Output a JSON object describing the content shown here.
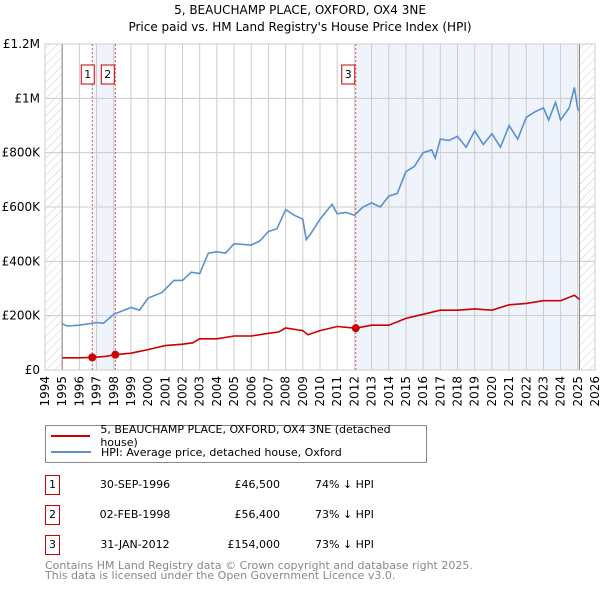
{
  "chart_data": {
    "type": "line",
    "title": "5, BEAUCHAMP PLACE, OXFORD, OX4 3NE",
    "subtitle": "Price paid vs. HM Land Registry's House Price Index (HPI)",
    "xlim": [
      1994,
      2026
    ],
    "ylim": [
      0,
      1200000
    ],
    "y_ticks": [
      {
        "v": 0,
        "label": "£0"
      },
      {
        "v": 200000,
        "label": "£200K"
      },
      {
        "v": 400000,
        "label": "£400K"
      },
      {
        "v": 600000,
        "label": "£600K"
      },
      {
        "v": 800000,
        "label": "£800K"
      },
      {
        "v": 1000000,
        "label": "£1M"
      },
      {
        "v": 1200000,
        "label": "£1.2M"
      }
    ],
    "x_ticks": [
      "1994",
      "1995",
      "1996",
      "1997",
      "1998",
      "1999",
      "2000",
      "2001",
      "2002",
      "2003",
      "2004",
      "2005",
      "2006",
      "2007",
      "2008",
      "2009",
      "2010",
      "2011",
      "2012",
      "2013",
      "2014",
      "2015",
      "2016",
      "2017",
      "2018",
      "2019",
      "2020",
      "2021",
      "2022",
      "2023",
      "2024",
      "2025",
      "2026"
    ],
    "grid": true,
    "data_range": [
      1995,
      2025.1
    ],
    "series": [
      {
        "name": "5, BEAUCHAMP PLACE, OXFORD, OX4 3NE (detached house)",
        "color": "#cc0000",
        "x": [
          1995,
          1996,
          1996.75,
          1997.5,
          1998.1,
          1999,
          2000,
          2001,
          2002,
          2002.6,
          2003,
          2004,
          2005,
          2006,
          2007,
          2007.6,
          2008,
          2009,
          2009.3,
          2010,
          2011,
          2012.08,
          2013,
          2014,
          2015,
          2016,
          2017,
          2018,
          2019,
          2020,
          2021,
          2022,
          2023,
          2024,
          2024.8,
          2025.1
        ],
        "y": [
          45000,
          45000,
          46500,
          50000,
          56400,
          62000,
          75000,
          90000,
          95000,
          100000,
          115000,
          115000,
          125000,
          125000,
          135000,
          140000,
          155000,
          145000,
          130000,
          145000,
          160000,
          154000,
          165000,
          165000,
          190000,
          205000,
          220000,
          220000,
          225000,
          220000,
          240000,
          245000,
          255000,
          255000,
          275000,
          260000
        ]
      },
      {
        "name": "HPI: Average price, detached house, Oxford",
        "color": "#5b8fd0",
        "x": [
          1995,
          1995.3,
          1996,
          1997,
          1997.4,
          1998,
          1999,
          1999.5,
          2000,
          2000.8,
          2001.5,
          2002,
          2002.5,
          2003,
          2003.5,
          2004,
          2004.5,
          2005,
          2006,
          2006.5,
          2007,
          2007.5,
          2008,
          2008.5,
          2009,
          2009.2,
          2009.5,
          2010,
          2010.7,
          2011,
          2011.5,
          2012,
          2012.5,
          2013,
          2013.5,
          2014,
          2014.5,
          2015,
          2015.5,
          2016,
          2016.5,
          2016.7,
          2017,
          2017.5,
          2018,
          2018.5,
          2019,
          2019.5,
          2020,
          2020.5,
          2021,
          2021.5,
          2022,
          2022.5,
          2023,
          2023.3,
          2023.7,
          2024,
          2024.5,
          2024.8,
          2025,
          2025.1
        ],
        "y": [
          170000,
          162000,
          165000,
          175000,
          172000,
          205000,
          230000,
          220000,
          265000,
          285000,
          330000,
          330000,
          360000,
          355000,
          430000,
          435000,
          430000,
          465000,
          460000,
          475000,
          510000,
          520000,
          590000,
          570000,
          555000,
          480000,
          505000,
          555000,
          610000,
          575000,
          580000,
          570000,
          600000,
          615000,
          600000,
          640000,
          650000,
          730000,
          750000,
          800000,
          810000,
          780000,
          850000,
          845000,
          860000,
          820000,
          880000,
          830000,
          870000,
          820000,
          900000,
          850000,
          930000,
          950000,
          965000,
          920000,
          985000,
          920000,
          965000,
          1040000,
          960000,
          955000
        ]
      }
    ],
    "sales": [
      {
        "n": "1",
        "x": 1996.75,
        "date": "30-SEP-1996",
        "price": "£46,500",
        "value": 46500,
        "hpi": "74% ↓ HPI"
      },
      {
        "n": "2",
        "x": 1998.09,
        "date": "02-FEB-1998",
        "price": "£56,400",
        "value": 56400,
        "hpi": "73% ↓ HPI"
      },
      {
        "n": "3",
        "x": 2012.08,
        "date": "31-JAN-2012",
        "price": "£154,000",
        "value": 154000,
        "hpi": "73% ↓ HPI"
      }
    ]
  },
  "footer": {
    "line1": "Contains HM Land Registry data © Crown copyright and database right 2025.",
    "line2": "This data is licensed under the Open Government Licence v3.0."
  }
}
